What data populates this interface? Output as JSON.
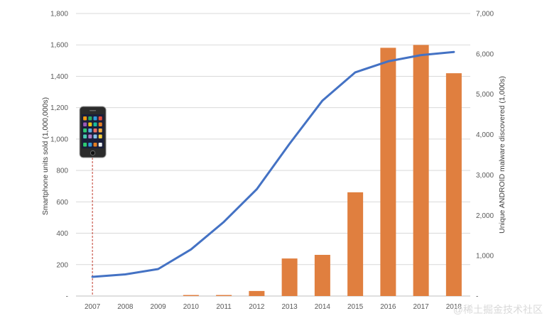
{
  "chart_data": {
    "type": "bar",
    "title": "",
    "xlabel": "",
    "categories": [
      "2007",
      "2008",
      "2009",
      "2010",
      "2011",
      "2012",
      "2013",
      "2014",
      "2015",
      "2016",
      "2017",
      "2018"
    ],
    "series": [
      {
        "kind": "line",
        "axis": "left",
        "color": "#4472c4",
        "values": [
          122,
          138,
          172,
          297,
          472,
          680,
          970,
          1245,
          1425,
          1495,
          1535,
          1555
        ]
      },
      {
        "kind": "bar",
        "axis": "right",
        "color": "#e07f3f",
        "values": [
          0,
          0,
          0,
          25,
          25,
          125,
          930,
          1020,
          2570,
          6150,
          6220,
          5520
        ]
      }
    ],
    "y_left": {
      "label": "Smartphone units sold (1,000,000s)",
      "ylim": [
        0,
        1800
      ],
      "ticks": [
        "-",
        "200",
        "400",
        "600",
        "800",
        "1,000",
        "1,200",
        "1,400",
        "1,600",
        "1,800"
      ]
    },
    "y_right": {
      "label": "Unique ANDROID malware discovered (1,000s)",
      "ylim": [
        0,
        7000
      ],
      "ticks": [
        "-",
        "1,000",
        "2,000",
        "3,000",
        "4,000",
        "5,000",
        "6,000",
        "7,000"
      ]
    },
    "grid": true,
    "legend": "none",
    "annotation": {
      "icon": "smartphone-icon",
      "marker_category": "2007",
      "marker_color": "#c0392b"
    }
  },
  "watermark": "@稀土掘金技术社区"
}
